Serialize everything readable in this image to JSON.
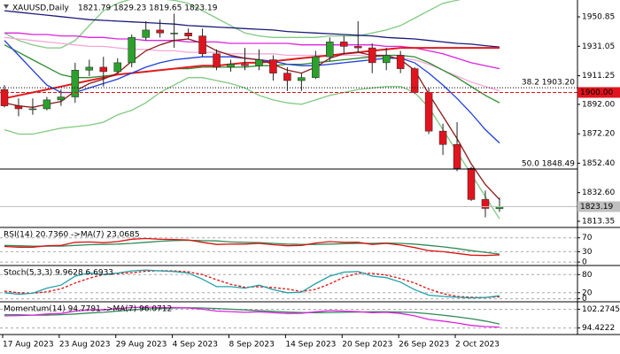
{
  "chart_data": [
    {
      "type": "candlestick",
      "title": "XAUUSD,Daily",
      "ohlc_label": "1821.79 1829.23 1819.65 1823.19",
      "categories": [
        null,
        "17 Aug 2023",
        null,
        null,
        null,
        "23 Aug 2023",
        null,
        null,
        null,
        "29 Aug 2023",
        null,
        null,
        null,
        "4 Sep 2023",
        null,
        null,
        null,
        "8 Sep 2023",
        null,
        null,
        null,
        "14 Sep 2023",
        null,
        null,
        null,
        "20 Sep 2023",
        null,
        null,
        null,
        "26 Sep 2023",
        null,
        null,
        null,
        "2 Oct 2023",
        null,
        null
      ],
      "open": [
        1902,
        1891,
        1889,
        1889,
        1895,
        1897,
        1915,
        1917,
        1914,
        1920,
        1937,
        1942,
        1940,
        1940,
        1938,
        1926,
        1917,
        1919,
        1918,
        1922,
        1913,
        1908,
        1910,
        1924,
        1934,
        1931,
        1930,
        1920,
        1925,
        1916,
        1900,
        1874,
        1865,
        1849,
        1828,
        1821.79
      ],
      "high": [
        1905,
        1896,
        1896,
        1897,
        1902,
        1920,
        1922,
        1924,
        1923,
        1939,
        1948,
        1949,
        1953,
        1943,
        1943,
        1929,
        1922,
        1930,
        1929,
        1925,
        1917,
        1913,
        1928,
        1937,
        1938,
        1948,
        1933,
        1930,
        1928,
        1917,
        1903,
        1879,
        1880,
        1850,
        1834,
        1829.23
      ],
      "low": [
        1890,
        1884,
        1885,
        1888,
        1891,
        1893,
        1911,
        1904,
        1913,
        1917,
        1935,
        1937,
        1930,
        1936,
        1924,
        1915,
        1914,
        1915,
        1915,
        1908,
        1901,
        1901,
        1909,
        1921,
        1926,
        1927,
        1913,
        1915,
        1913,
        1899,
        1872,
        1858,
        1847,
        1827,
        1816,
        1819.65
      ],
      "close": [
        1891,
        1889,
        1889,
        1895,
        1897,
        1915,
        1917,
        1914,
        1920,
        1937,
        1942,
        1940,
        1940,
        1938,
        1926,
        1917,
        1919,
        1918,
        1922,
        1913,
        1908,
        1910,
        1924,
        1934,
        1931,
        1930,
        1920,
        1925,
        1916,
        1900,
        1874,
        1865,
        1849,
        1828,
        1822,
        1823.19
      ],
      "up_color": "#2ca02c",
      "down_color": "#e0141e",
      "overlays": [
        {
          "color": "#7fc97f",
          "values": [
            1940,
            1935,
            1932,
            1930,
            1930,
            1935,
            1945,
            1955,
            1960,
            1963,
            1964,
            1963,
            1962,
            1960,
            1955,
            1950,
            1945,
            1940,
            1938,
            1937,
            1937,
            1937,
            1937,
            1938,
            1938,
            1938,
            1940,
            1942,
            1945,
            1950,
            1955,
            1960,
            1962,
            1964,
            1966,
            1968
          ]
        },
        {
          "color": "#7fc97f",
          "values": [
            1875,
            1872,
            1872,
            1874,
            1876,
            1877,
            1878,
            1880,
            1885,
            1888,
            1893,
            1900,
            1905,
            1910,
            1910,
            1908,
            1906,
            1903,
            1898,
            1895,
            1893,
            1892,
            1895,
            1898,
            1900,
            1902,
            1903,
            1904,
            1904,
            1900,
            1890,
            1875,
            1860,
            1845,
            1830,
            1815
          ]
        },
        {
          "color": "#f4a6d7",
          "values": [
            1937,
            1936,
            1935,
            1934,
            1933,
            1932,
            1931,
            1931,
            1930,
            1929,
            1929,
            1928,
            1928,
            1927,
            1927,
            1927,
            1926,
            1926,
            1926,
            1926,
            1925,
            1925,
            1925,
            1925,
            1925,
            1925,
            1924,
            1924,
            1923,
            1922,
            1919,
            1915,
            1911,
            1907,
            1904,
            1901
          ]
        },
        {
          "color": "#dd22dd",
          "values": [
            1940,
            1940,
            1939,
            1939,
            1938,
            1938,
            1937,
            1937,
            1936,
            1936,
            1935,
            1935,
            1935,
            1934,
            1934,
            1934,
            1933,
            1933,
            1933,
            1933,
            1933,
            1932,
            1932,
            1932,
            1932,
            1932,
            1932,
            1931,
            1931,
            1930,
            1928,
            1926,
            1923,
            1920,
            1918,
            1916
          ]
        },
        {
          "color": "#1a1a7a",
          "values": [
            1955,
            1954,
            1953,
            1952,
            1951,
            1950,
            1949,
            1948.5,
            1948,
            1947.5,
            1947,
            1946.5,
            1946,
            1945,
            1944.5,
            1944,
            1943.5,
            1943,
            1942.5,
            1942,
            1941,
            1940.5,
            1940,
            1939.5,
            1939,
            1938.5,
            1938,
            1937,
            1936.5,
            1936,
            1935,
            1934,
            1933,
            1932.5,
            1931.5,
            1930.5
          ]
        },
        {
          "color": "#2e8b2e",
          "values": [
            1932,
            1927,
            1922,
            1917,
            1912,
            1910,
            1910,
            1911,
            1912,
            1913,
            1914,
            1915,
            1916,
            1916,
            1917,
            1917,
            1917,
            1917,
            1918,
            1918,
            1919,
            1919,
            1920,
            1921,
            1922,
            1923,
            1924,
            1925,
            1925,
            1924,
            1920,
            1915,
            1910,
            1904,
            1898,
            1893
          ]
        },
        {
          "color": "#e31a1c",
          "values": [
            1896,
            1898,
            1900,
            1902,
            1904,
            1906,
            1908,
            1910,
            1912,
            1913,
            1914,
            1915,
            1916,
            1917,
            1918,
            1918,
            1919,
            1920,
            1920,
            1921,
            1922,
            1923,
            1924,
            1925,
            1926,
            1927,
            1928,
            1929,
            1930,
            1930,
            1930,
            1930,
            1930,
            1930,
            1930,
            1930
          ]
        },
        {
          "color": "#1f3fdc",
          "values": [
            1935,
            1925,
            1915,
            1905,
            1900,
            1900,
            1903,
            1906,
            1909,
            1913,
            1917,
            1920,
            1922,
            1923,
            1924,
            1924,
            1924,
            1923,
            1922,
            1921,
            1919,
            1918,
            1918,
            1919,
            1920,
            1921,
            1922,
            1923,
            1923,
            1920,
            1913,
            1905,
            1896,
            1886,
            1875,
            1866
          ]
        },
        {
          "color": "#8b1a1a",
          "values": [
            1893,
            1891,
            1890,
            1892,
            1894,
            1901,
            1906,
            1909,
            1913,
            1921,
            1928,
            1932,
            1935,
            1936,
            1933,
            1928,
            1925,
            1923,
            1922,
            1919,
            1915,
            1913,
            1917,
            1923,
            1926,
            1927,
            1925,
            1925,
            1922,
            1915,
            1899,
            1884,
            1869,
            1852,
            1838,
            1828
          ]
        }
      ],
      "levels": [
        {
          "value": 1903.2,
          "label": "38.2 1903.20",
          "color": "#000000",
          "style": "dotted"
        },
        {
          "value": 1848.49,
          "label": "50.0 1848.49",
          "color": "#000000",
          "style": "solid"
        },
        {
          "value": 1900,
          "label": "1900.00",
          "color": "#e0141e",
          "style": "box"
        },
        {
          "value": 1823.19,
          "label": "1823.19",
          "color": "#c0c0c0",
          "style": "box"
        }
      ],
      "ylim": [
        1809.2,
        1962.2
      ],
      "yticks": [
        1950.85,
        1931.05,
        1911.25,
        {
          "value": 1892,
          "label": "1892.00"
        },
        {
          "value": 1872.2,
          "label": "1872.20"
        },
        {
          "value": 1852.4,
          "label": "1852.40"
        },
        {
          "value": 1832.6,
          "label": "1832.60"
        },
        1813.35
      ]
    },
    {
      "type": "line",
      "title": "RSI(14) 20.7360 ->MA(7) 23.0685",
      "series": [
        {
          "color": "#2e8b57",
          "values": [
            48,
            47,
            46,
            46,
            46,
            48,
            50,
            51,
            52,
            54,
            57,
            60,
            62,
            63,
            62,
            61,
            58,
            57,
            56,
            54,
            52,
            51,
            51,
            52,
            53,
            54,
            54,
            55,
            54,
            52,
            48,
            44,
            39,
            33,
            28,
            23.0685
          ]
        },
        {
          "color": "#dd1111",
          "values": [
            45,
            43,
            43,
            47,
            48,
            57,
            58,
            56,
            59,
            66,
            68,
            66,
            65,
            64,
            57,
            51,
            52,
            52,
            54,
            50,
            47,
            48,
            55,
            59,
            57,
            57,
            51,
            54,
            49,
            42,
            33,
            30,
            25,
            20,
            19,
            20.736
          ]
        }
      ],
      "ylim": [
        -10,
        100
      ],
      "yticks": [
        70,
        30,
        0
      ],
      "grid": true
    },
    {
      "type": "line",
      "title": "Stoch(5,3,3) 9.9628 6.6933",
      "series": [
        {
          "color": "#dd1111",
          "dash": true,
          "values": [
            25,
            20,
            18,
            23,
            33,
            52,
            68,
            80,
            83,
            86,
            91,
            93,
            92,
            89,
            80,
            63,
            48,
            38,
            40,
            37,
            32,
            24,
            31,
            49,
            71,
            84,
            84,
            78,
            67,
            52,
            32,
            17,
            8,
            5,
            4,
            6.6933
          ]
        },
        {
          "color": "#20a0a8",
          "values": [
            20,
            15,
            18,
            35,
            45,
            75,
            85,
            80,
            85,
            92,
            95,
            92,
            90,
            85,
            65,
            40,
            40,
            35,
            45,
            30,
            20,
            22,
            50,
            75,
            88,
            90,
            75,
            70,
            55,
            30,
            12,
            8,
            5,
            3,
            4,
            9.9628
          ]
        }
      ],
      "ylim": [
        -10,
        110
      ],
      "yticks": [
        80,
        20,
        0
      ],
      "grid": true
    },
    {
      "type": "line",
      "title": "Momentum(14) 94.7791 ->MA(7) 96.0712",
      "series": [
        {
          "color": "#2e8b57",
          "values": [
            100,
            100,
            99.8,
            99.8,
            100,
            100.3,
            100.7,
            101,
            101.5,
            102,
            102.4,
            102.6,
            102.8,
            102.9,
            102.8,
            102.6,
            102.3,
            102,
            101.7,
            101.4,
            101.1,
            100.9,
            100.8,
            100.9,
            101,
            101.1,
            101.2,
            101.2,
            101.1,
            100.9,
            100.4,
            99.8,
            99.1,
            98.3,
            97.3,
            96.0712
          ]
        },
        {
          "color": "#dd22dd",
          "values": [
            99.5,
            99.6,
            99.8,
            100.3,
            100.5,
            101.5,
            102,
            102,
            102.5,
            103,
            103.2,
            103,
            103,
            102.8,
            102.3,
            101.5,
            101.3,
            101,
            101.2,
            100.8,
            100.5,
            100.6,
            101.2,
            101.7,
            101.5,
            101.3,
            100.8,
            101,
            100.5,
            99.5,
            98,
            97.3,
            96.5,
            95.5,
            95,
            94.7791
          ]
        }
      ],
      "ylim": [
        91.67,
        105.41
      ],
      "yticks": [
        {
          "value": 102.2745,
          "label": "102.2745"
        },
        {
          "value": 94.4222,
          "label": "94.4222"
        }
      ],
      "grid": true
    }
  ]
}
